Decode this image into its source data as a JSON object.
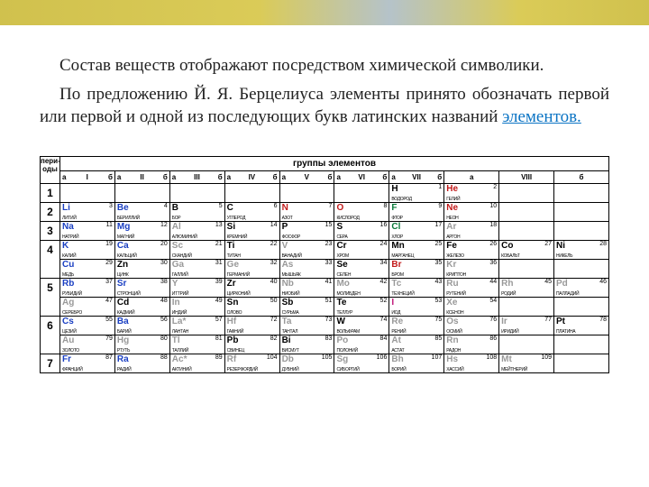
{
  "paragraphs": {
    "p1": "Состав веществ отображают посредством химической символики.",
    "p2a": "По предложению Й. Я. Берцелиуса элементы принято обозначать первой или первой и одной из последующих букв латинских названий ",
    "p2link": "элементов."
  },
  "tableHeaders": {
    "periods": "пери-оды",
    "groups": "группы элементов",
    "a": "а",
    "b": "б",
    "roman": [
      "I",
      "II",
      "III",
      "IV",
      "V",
      "VI",
      "VII",
      "VIII"
    ]
  },
  "colors": {
    "red": "#c21a1a",
    "blue": "#1a3fc2",
    "black": "#000000",
    "grey": "#999999",
    "green": "#0a7a3a",
    "pink": "#c21a7a",
    "border": "#000000",
    "accent_gradient": [
      "#c8b62e",
      "#d4c23a",
      "#a8b8c0"
    ]
  },
  "typography": {
    "body_font": "Georgia",
    "body_size_pt": 15,
    "table_font": "Arial"
  },
  "rows": [
    {
      "period": "1",
      "cells": [
        null,
        null,
        null,
        null,
        null,
        null,
        {
          "n": "1",
          "s": "H",
          "name": "ВОДОРОД",
          "c": "black"
        },
        {
          "n": "2",
          "s": "He",
          "name": "ГЕЛИЙ",
          "c": "red"
        },
        null,
        null
      ]
    },
    {
      "period": "2",
      "cells": [
        {
          "n": "3",
          "s": "Li",
          "name": "ЛИТИЙ",
          "c": "blue"
        },
        {
          "n": "4",
          "s": "Be",
          "name": "БЕРИЛЛИЙ",
          "c": "blue"
        },
        {
          "n": "5",
          "s": "B",
          "name": "БОР",
          "c": "black"
        },
        {
          "n": "6",
          "s": "C",
          "name": "УГЛЕРОД",
          "c": "black"
        },
        {
          "n": "7",
          "s": "N",
          "name": "АЗОТ",
          "c": "red"
        },
        {
          "n": "8",
          "s": "O",
          "name": "КИСЛОРОД",
          "c": "red"
        },
        {
          "n": "9",
          "s": "F",
          "name": "ФТОР",
          "c": "green"
        },
        {
          "n": "10",
          "s": "Ne",
          "name": "НЕОН",
          "c": "red"
        },
        null,
        null
      ]
    },
    {
      "period": "3",
      "cells": [
        {
          "n": "11",
          "s": "Na",
          "name": "НАТРИЙ",
          "c": "blue"
        },
        {
          "n": "12",
          "s": "Mg",
          "name": "МАГНИЙ",
          "c": "blue"
        },
        {
          "n": "13",
          "s": "Al",
          "name": "АЛЮМИНИЙ",
          "c": "grey"
        },
        {
          "n": "14",
          "s": "Si",
          "name": "КРЕМНИЙ",
          "c": "black"
        },
        {
          "n": "15",
          "s": "P",
          "name": "ФОСФОР",
          "c": "black"
        },
        {
          "n": "16",
          "s": "S",
          "name": "СЕРА",
          "c": "black"
        },
        {
          "n": "17",
          "s": "Cl",
          "name": "ХЛОР",
          "c": "green"
        },
        {
          "n": "18",
          "s": "Ar",
          "name": "АРГОН",
          "c": "grey"
        },
        null,
        null
      ]
    },
    {
      "period": "4",
      "sub": [
        [
          {
            "n": "19",
            "s": "K",
            "name": "КАЛИЙ",
            "c": "blue"
          },
          {
            "n": "20",
            "s": "Ca",
            "name": "КАЛЬЦИЙ",
            "c": "blue"
          },
          {
            "n": "21",
            "s": "Sc",
            "name": "СКАНДИЙ",
            "c": "grey"
          },
          {
            "n": "22",
            "s": "Ti",
            "name": "ТИТАН",
            "c": "black"
          },
          {
            "n": "23",
            "s": "V",
            "name": "ВАНАДИЙ",
            "c": "grey"
          },
          {
            "n": "24",
            "s": "Cr",
            "name": "ХРОМ",
            "c": "black"
          },
          {
            "n": "25",
            "s": "Mn",
            "name": "МАРГАНЕЦ",
            "c": "black"
          },
          {
            "n": "26",
            "s": "Fe",
            "name": "ЖЕЛЕЗО",
            "c": "black"
          },
          {
            "n": "27",
            "s": "Co",
            "name": "КОБАЛЬТ",
            "c": "black"
          },
          {
            "n": "28",
            "s": "Ni",
            "name": "НИКЕЛЬ",
            "c": "black"
          }
        ],
        [
          {
            "n": "29",
            "s": "Cu",
            "name": "МЕДЬ",
            "c": "blue"
          },
          {
            "n": "30",
            "s": "Zn",
            "name": "ЦИНК",
            "c": "black"
          },
          {
            "n": "31",
            "s": "Ga",
            "name": "ГАЛЛИЙ",
            "c": "grey"
          },
          {
            "n": "32",
            "s": "Ge",
            "name": "ГЕРМАНИЙ",
            "c": "grey"
          },
          {
            "n": "33",
            "s": "As",
            "name": "МЫШЬЯК",
            "c": "grey"
          },
          {
            "n": "34",
            "s": "Se",
            "name": "СЕЛЕН",
            "c": "black"
          },
          {
            "n": "35",
            "s": "Br",
            "name": "БРОМ",
            "c": "red"
          },
          {
            "n": "36",
            "s": "Kr",
            "name": "КРИПТОН",
            "c": "grey"
          },
          null,
          null
        ]
      ]
    },
    {
      "period": "5",
      "sub": [
        [
          {
            "n": "37",
            "s": "Rb",
            "name": "РУБИДИЙ",
            "c": "blue"
          },
          {
            "n": "38",
            "s": "Sr",
            "name": "СТРОНЦИЙ",
            "c": "blue"
          },
          {
            "n": "39",
            "s": "Y",
            "name": "ИТТРИЙ",
            "c": "grey"
          },
          {
            "n": "40",
            "s": "Zr",
            "name": "ЦИРКОНИЙ",
            "c": "black"
          },
          {
            "n": "41",
            "s": "Nb",
            "name": "НИОБИЙ",
            "c": "grey"
          },
          {
            "n": "42",
            "s": "Mo",
            "name": "МОЛИБДЕН",
            "c": "grey"
          },
          {
            "n": "43",
            "s": "Tc",
            "name": "ТЕХНЕЦИЙ",
            "c": "grey"
          },
          {
            "n": "44",
            "s": "Ru",
            "name": "РУТЕНИЙ",
            "c": "grey"
          },
          {
            "n": "45",
            "s": "Rh",
            "name": "РОДИЙ",
            "c": "grey"
          },
          {
            "n": "46",
            "s": "Pd",
            "name": "ПАЛЛАДИЙ",
            "c": "grey"
          }
        ],
        [
          {
            "n": "47",
            "s": "Ag",
            "name": "СЕРЕБРО",
            "c": "grey"
          },
          {
            "n": "48",
            "s": "Cd",
            "name": "КАДМИЙ",
            "c": "black"
          },
          {
            "n": "49",
            "s": "In",
            "name": "ИНДИЙ",
            "c": "grey"
          },
          {
            "n": "50",
            "s": "Sn",
            "name": "ОЛОВО",
            "c": "black"
          },
          {
            "n": "51",
            "s": "Sb",
            "name": "СУРЬМА",
            "c": "black"
          },
          {
            "n": "52",
            "s": "Te",
            "name": "ТЕЛЛУР",
            "c": "black"
          },
          {
            "n": "53",
            "s": "I",
            "name": "ИОД",
            "c": "pink"
          },
          {
            "n": "54",
            "s": "Xe",
            "name": "КСЕНОН",
            "c": "grey"
          },
          null,
          null
        ]
      ]
    },
    {
      "period": "6",
      "sub": [
        [
          {
            "n": "55",
            "s": "Cs",
            "name": "ЦЕЗИЙ",
            "c": "blue"
          },
          {
            "n": "56",
            "s": "Ba",
            "name": "БАРИЙ",
            "c": "blue"
          },
          {
            "n": "57",
            "s": "La*",
            "name": "ЛАНТАН",
            "c": "grey"
          },
          {
            "n": "72",
            "s": "Hf",
            "name": "ГАФНИЙ",
            "c": "grey"
          },
          {
            "n": "73",
            "s": "Ta",
            "name": "ТАНТАЛ",
            "c": "grey"
          },
          {
            "n": "74",
            "s": "W",
            "name": "ВОЛЬФРАМ",
            "c": "black"
          },
          {
            "n": "75",
            "s": "Re",
            "name": "РЕНИЙ",
            "c": "grey"
          },
          {
            "n": "76",
            "s": "Os",
            "name": "ОСМИЙ",
            "c": "grey"
          },
          {
            "n": "77",
            "s": "Ir",
            "name": "ИРИДИЙ",
            "c": "grey"
          },
          {
            "n": "78",
            "s": "Pt",
            "name": "ПЛАТИНА",
            "c": "black"
          }
        ],
        [
          {
            "n": "79",
            "s": "Au",
            "name": "ЗОЛОТО",
            "c": "grey"
          },
          {
            "n": "80",
            "s": "Hg",
            "name": "РТУТЬ",
            "c": "grey"
          },
          {
            "n": "81",
            "s": "Tl",
            "name": "ТАЛЛИЙ",
            "c": "grey"
          },
          {
            "n": "82",
            "s": "Pb",
            "name": "СВИНЕЦ",
            "c": "black"
          },
          {
            "n": "83",
            "s": "Bi",
            "name": "ВИСМУТ",
            "c": "black"
          },
          {
            "n": "84",
            "s": "Po",
            "name": "ПОЛОНИЙ",
            "c": "grey"
          },
          {
            "n": "85",
            "s": "At",
            "name": "АСТАТ",
            "c": "grey"
          },
          {
            "n": "86",
            "s": "Rn",
            "name": "РАДОН",
            "c": "grey"
          },
          null,
          null
        ]
      ]
    },
    {
      "period": "7",
      "cells": [
        {
          "n": "87",
          "s": "Fr",
          "name": "ФРАНЦИЙ",
          "c": "blue"
        },
        {
          "n": "88",
          "s": "Ra",
          "name": "РАДИЙ",
          "c": "blue"
        },
        {
          "n": "89",
          "s": "Ac*",
          "name": "АКТИНИЙ",
          "c": "grey"
        },
        {
          "n": "104",
          "s": "Rf",
          "name": "РЕЗЕРФОРДИЙ",
          "c": "grey"
        },
        {
          "n": "105",
          "s": "Db",
          "name": "ДУБНИЙ",
          "c": "grey"
        },
        {
          "n": "106",
          "s": "Sg",
          "name": "СИБОРГИЙ",
          "c": "grey"
        },
        {
          "n": "107",
          "s": "Bh",
          "name": "БОРИЙ",
          "c": "grey"
        },
        {
          "n": "108",
          "s": "Hs",
          "name": "ХАССИЙ",
          "c": "grey"
        },
        {
          "n": "109",
          "s": "Mt",
          "name": "МЕЙТНЕРИЙ",
          "c": "grey"
        },
        null
      ]
    }
  ]
}
